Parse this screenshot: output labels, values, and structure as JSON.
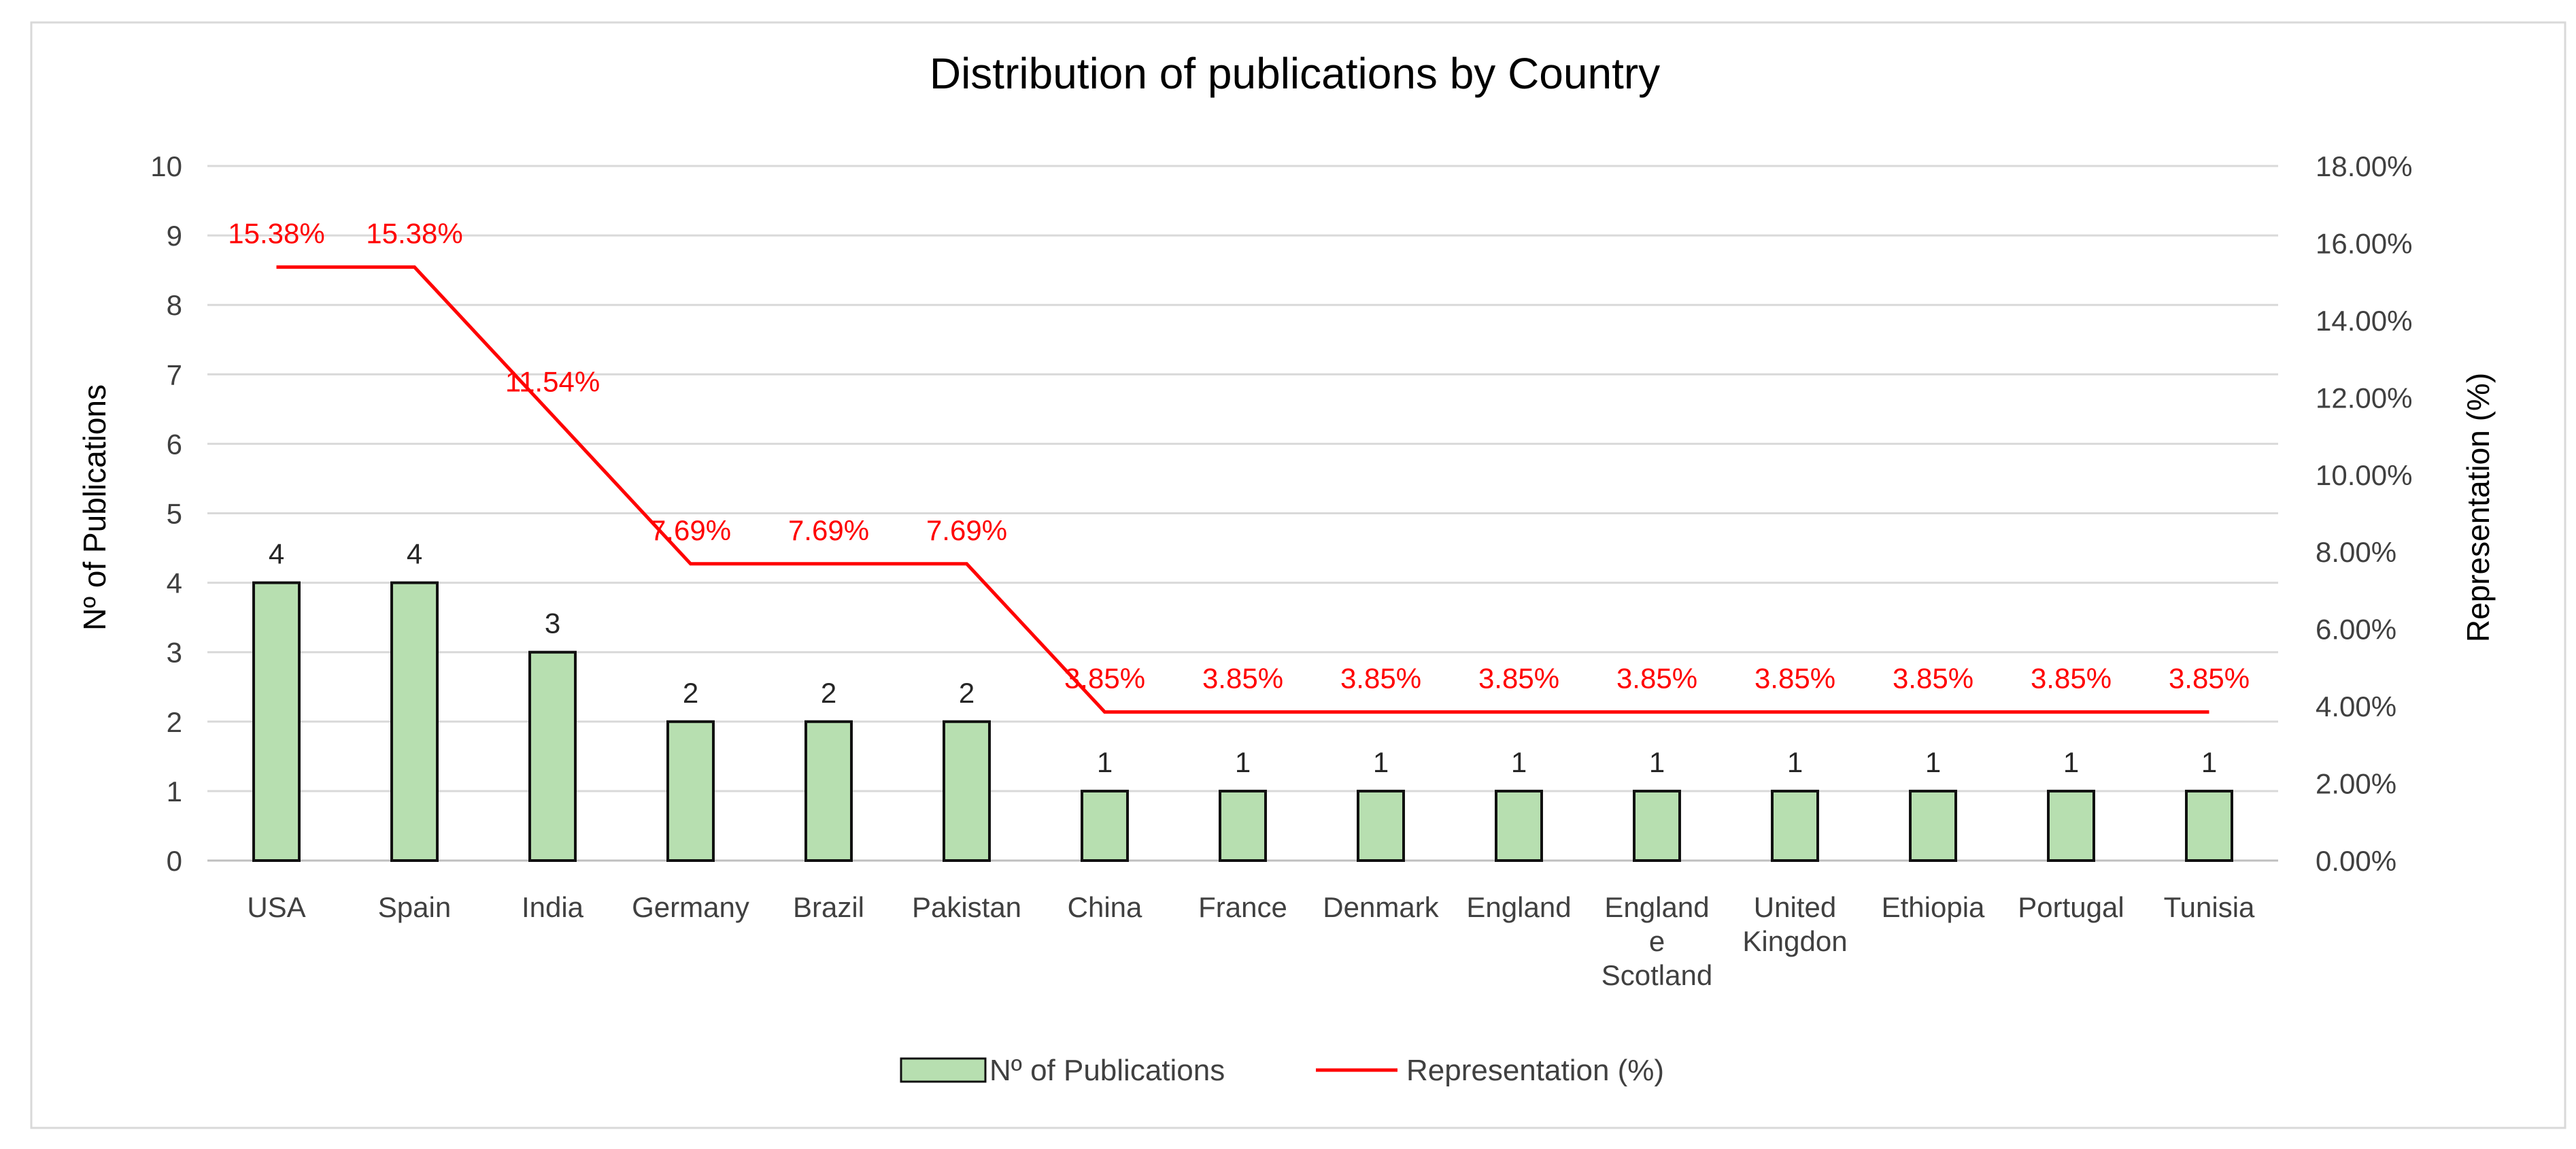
{
  "chart_data": {
    "type": "bar",
    "title": "Distribution of publications by Country",
    "categories": [
      [
        "USA"
      ],
      [
        "Spain"
      ],
      [
        "India"
      ],
      [
        "Germany"
      ],
      [
        "Brazil"
      ],
      [
        "Pakistan"
      ],
      [
        "China"
      ],
      [
        "France"
      ],
      [
        "Denmark"
      ],
      [
        "England"
      ],
      [
        "England",
        "e",
        "Scotland"
      ],
      [
        "United",
        "Kingdon"
      ],
      [
        "Ethiopia"
      ],
      [
        "Portugal"
      ],
      [
        "Tunisia"
      ]
    ],
    "series": [
      {
        "name": "Nº of Publications",
        "type": "bar",
        "axis": "left",
        "values": [
          4,
          4,
          3,
          2,
          2,
          2,
          1,
          1,
          1,
          1,
          1,
          1,
          1,
          1,
          1
        ],
        "labels": [
          "4",
          "4",
          "3",
          "2",
          "2",
          "2",
          "1",
          "1",
          "1",
          "1",
          "1",
          "1",
          "1",
          "1",
          "1"
        ]
      },
      {
        "name": "Representation (%)",
        "type": "line",
        "axis": "right",
        "values": [
          15.38,
          15.38,
          11.54,
          7.69,
          7.69,
          7.69,
          3.85,
          3.85,
          3.85,
          3.85,
          3.85,
          3.85,
          3.85,
          3.85,
          3.85
        ],
        "labels": [
          "15.38%",
          "15.38%",
          "11.54%",
          "7.69%",
          "7.69%",
          "7.69%",
          "3.85%",
          "3.85%",
          "3.85%",
          "3.85%",
          "3.85%",
          "3.85%",
          "3.85%",
          "3.85%",
          "3.85%"
        ]
      }
    ],
    "ylabel": "Nº of Publications",
    "y2label": "Representation (%)",
    "ylim": [
      0,
      10
    ],
    "y2lim": [
      0,
      18
    ],
    "yticks": [
      "0",
      "1",
      "2",
      "3",
      "4",
      "5",
      "6",
      "7",
      "8",
      "9",
      "10"
    ],
    "y2ticks": [
      "0.00%",
      "2.00%",
      "4.00%",
      "6.00%",
      "8.00%",
      "10.00%",
      "12.00%",
      "14.00%",
      "16.00%",
      "18.00%"
    ],
    "grid": true,
    "legend": "bottom-center",
    "colors": {
      "bar_fill": "#b7dfb0",
      "bar_stroke": "#111111",
      "line": "#ff0000",
      "grid": "#d9d9d9",
      "text": "#404040"
    }
  }
}
